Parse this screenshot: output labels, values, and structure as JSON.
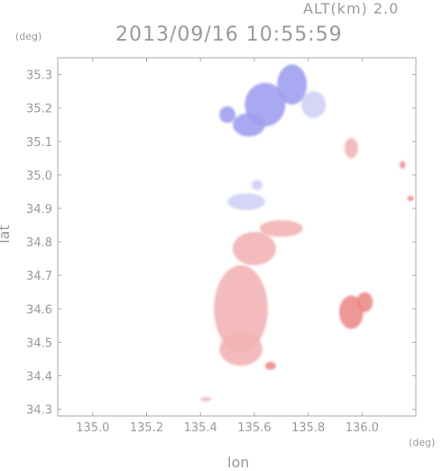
{
  "chart_data": {
    "type": "heatmap",
    "title": "2013/09/16 10:55:59",
    "altitude_label": "ALT(km)  2.0",
    "xlabel": "lon",
    "ylabel": "lat",
    "x_unit": "(deg)",
    "y_unit": "(deg)",
    "xlim": [
      134.87,
      136.2
    ],
    "ylim": [
      34.28,
      35.35
    ],
    "x_ticks": [
      "135.0",
      "135.2",
      "135.4",
      "135.6",
      "135.8",
      "136.0"
    ],
    "x_tick_values": [
      135.0,
      135.2,
      135.4,
      135.6,
      135.8,
      136.0
    ],
    "y_ticks": [
      "34.3",
      "34.4",
      "34.5",
      "34.6",
      "34.7",
      "34.8",
      "34.9",
      "35.0",
      "35.1",
      "35.2",
      "35.3"
    ],
    "y_tick_values": [
      34.3,
      34.4,
      34.5,
      34.6,
      34.7,
      34.8,
      34.9,
      35.0,
      35.1,
      35.2,
      35.3
    ],
    "colors": {
      "toward": "#9ea0ee",
      "toward_light": "#cfd0f6",
      "away": "#f2b4b4",
      "away_strong": "#ec8c8c",
      "axis": "#aaaaaa"
    },
    "regions": [
      {
        "kind": "toward",
        "lon": 135.64,
        "lat": 35.21,
        "rx": 0.075,
        "ry": 0.065
      },
      {
        "kind": "toward",
        "lon": 135.74,
        "lat": 35.27,
        "rx": 0.055,
        "ry": 0.06
      },
      {
        "kind": "toward",
        "lon": 135.58,
        "lat": 35.15,
        "rx": 0.06,
        "ry": 0.035
      },
      {
        "kind": "toward",
        "lon": 135.5,
        "lat": 35.18,
        "rx": 0.03,
        "ry": 0.025
      },
      {
        "kind": "toward_light",
        "lon": 135.82,
        "lat": 35.21,
        "rx": 0.045,
        "ry": 0.04
      },
      {
        "kind": "toward_light",
        "lon": 135.57,
        "lat": 34.92,
        "rx": 0.07,
        "ry": 0.025
      },
      {
        "kind": "toward_light",
        "lon": 135.61,
        "lat": 34.97,
        "rx": 0.02,
        "ry": 0.015
      },
      {
        "kind": "away",
        "lon": 135.55,
        "lat": 34.6,
        "rx": 0.1,
        "ry": 0.13
      },
      {
        "kind": "away",
        "lon": 135.55,
        "lat": 34.48,
        "rx": 0.08,
        "ry": 0.05
      },
      {
        "kind": "away",
        "lon": 135.6,
        "lat": 34.78,
        "rx": 0.08,
        "ry": 0.05
      },
      {
        "kind": "away",
        "lon": 135.7,
        "lat": 34.84,
        "rx": 0.08,
        "ry": 0.025
      },
      {
        "kind": "away_strong",
        "lon": 135.96,
        "lat": 34.59,
        "rx": 0.045,
        "ry": 0.05
      },
      {
        "kind": "away_strong",
        "lon": 136.01,
        "lat": 34.62,
        "rx": 0.03,
        "ry": 0.03
      },
      {
        "kind": "away_strong",
        "lon": 135.66,
        "lat": 34.43,
        "rx": 0.02,
        "ry": 0.012
      },
      {
        "kind": "away_strong",
        "lon": 136.18,
        "lat": 34.93,
        "rx": 0.012,
        "ry": 0.008
      },
      {
        "kind": "away_strong",
        "lon": 136.15,
        "lat": 35.03,
        "rx": 0.01,
        "ry": 0.012
      },
      {
        "kind": "away",
        "lon": 135.96,
        "lat": 35.08,
        "rx": 0.025,
        "ry": 0.03
      },
      {
        "kind": "away",
        "lon": 135.42,
        "lat": 34.33,
        "rx": 0.02,
        "ry": 0.006
      }
    ]
  }
}
